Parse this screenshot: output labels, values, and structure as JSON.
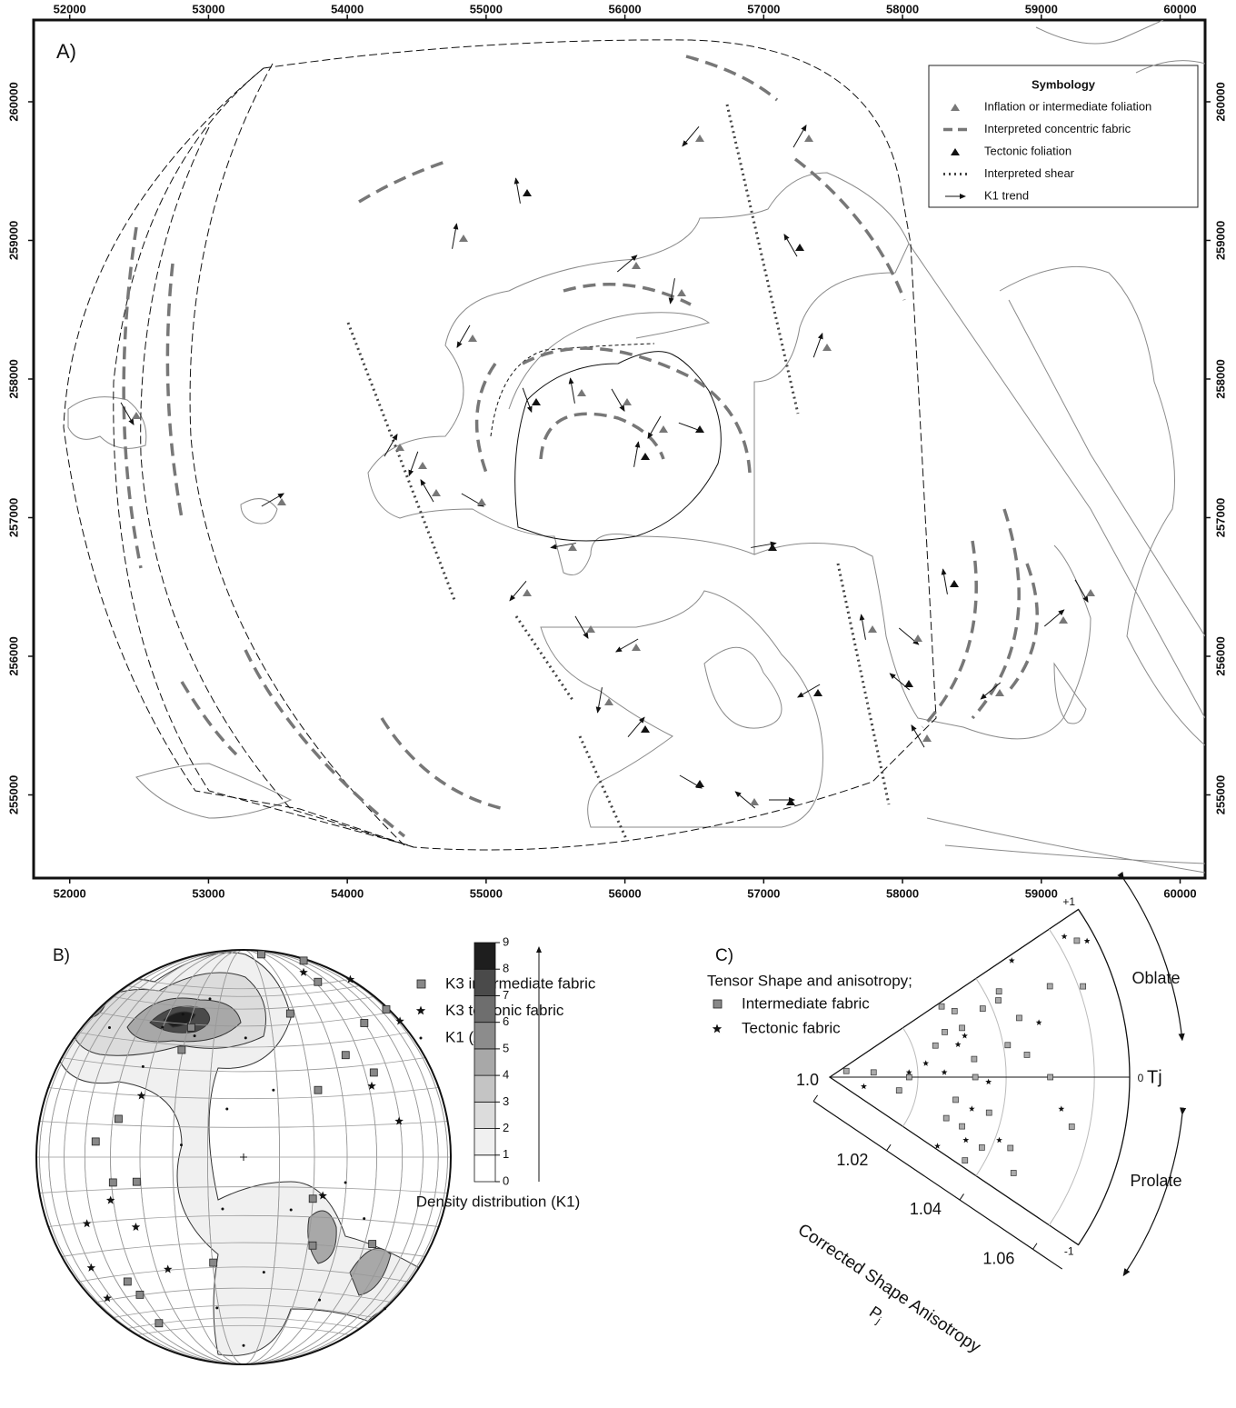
{
  "map": {
    "panel_label": "A)",
    "xlim": [
      51740,
      60180
    ],
    "ylim": [
      254400,
      260590
    ],
    "xticks": [
      52000,
      53000,
      54000,
      55000,
      56000,
      57000,
      58000,
      59000,
      60000
    ],
    "yticks": [
      255000,
      256000,
      257000,
      258000,
      259000,
      260000
    ],
    "legend": {
      "title": "Symbology",
      "entries": [
        "Inflation or intermediate foliation",
        "Interpreted concentric fabric",
        "Tectonic foliation",
        "Interpreted shear",
        "K1 trend"
      ]
    }
  },
  "stereonet": {
    "panel_label": "B)",
    "legend": [
      "K3 intermediate fabric",
      "K3 tectonic fabric",
      "K1 (All)"
    ],
    "k3_intermediate": {
      "trend": [
        5,
        17,
        23,
        42,
        44,
        45,
        57,
        48,
        18,
        330,
        338,
        287,
        276,
        259,
        257,
        196,
        207,
        217,
        142,
        124,
        121,
        223
      ],
      "plunge": [
        2,
        1,
        9,
        14,
        1,
        31,
        26,
        50,
        28,
        40,
        33,
        37,
        29,
        36,
        46,
        46,
        11,
        18,
        45,
        26,
        58,
        19
      ]
    },
    "k3_tectonic": {
      "trend": [
        18,
        31,
        49,
        61,
        77,
        252,
        237,
        234,
        214,
        247,
        116,
        301,
        224
      ],
      "plunge": [
        7,
        0,
        0,
        30,
        24,
        33,
        38,
        10,
        35,
        19,
        55,
        42,
        6
      ]
    },
    "k1": {
      "trend": [
        337,
        338,
        328,
        348,
        314,
        1,
        24,
        138,
        104,
        117,
        137,
        190,
        170,
        202,
        281,
        341,
        152,
        180,
        312
      ],
      "plunge": [
        26,
        37,
        27,
        23,
        11,
        42,
        61,
        62,
        48,
        35,
        0,
        27,
        43,
        68,
        65,
        70,
        23,
        10,
        35
      ]
    },
    "colorbar": {
      "label": "Density distribution (K1)",
      "ticks": [
        0,
        1,
        2,
        3,
        4,
        5,
        6,
        7,
        8,
        9
      ],
      "colors": [
        "#ffffff",
        "#f0f0f0",
        "#dcdcdc",
        "#c4c4c4",
        "#a8a8a8",
        "#8c8c8c",
        "#6e6e6e",
        "#4a4a4a",
        "#1e1e1e"
      ]
    }
  },
  "tensor": {
    "panel_label": "C)",
    "title": "Tensor Shape and anisotropy;",
    "legend": [
      "Intermediate fabric",
      "Tectonic fabric"
    ],
    "tj_lim": [
      -1,
      1
    ],
    "tj_ticks": [
      {
        "value": 1,
        "label": "+1"
      },
      0,
      -1
    ],
    "tj_label": "Tj",
    "pj_lim": [
      1.0,
      1.068
    ],
    "pj_ticks": [
      {
        "value": 1.0,
        "label": "1.0"
      },
      1.02,
      1.04,
      1.06
    ],
    "pj_label": "Corrected Shape Anisotropy",
    "pj_symbol": "P",
    "pj_subscript": "j",
    "oblate": "Oblate",
    "prolate": "Prolate",
    "intermediate": {
      "pj": [
        1.064,
        1.061,
        1.054,
        1.043,
        1.038,
        1.032,
        1.032,
        1.028,
        1.045,
        1.041,
        1.045,
        1.033,
        1.025,
        1.018,
        1.01,
        1.004,
        1.016,
        1.029,
        1.032,
        1.037,
        1.038,
        1.044,
        1.05,
        1.056,
        1.047,
        1.028,
        1.036,
        1.033,
        1.042,
        1.03
      ],
      "tj": [
        0.85,
        0.58,
        0.66,
        0.79,
        0.71,
        0.82,
        0.6,
        0.63,
        0.51,
        0.3,
        0.19,
        0.21,
        0.49,
        0,
        0.18,
        0.6,
        -0.32,
        -0.3,
        -0.6,
        -0.37,
        -0.73,
        -0.63,
        0,
        -0.34,
        -0.81,
        -0.57,
        -0.93,
        0,
        0.72,
        0.95
      ]
    },
    "tectonic": {
      "pj": [
        1.062,
        1.066,
        1.049,
        1.049,
        1.03,
        1.026,
        1.022,
        1.008,
        1.033,
        1.029,
        1.034,
        1.041,
        1.053,
        1.036,
        1.032,
        1.018
      ],
      "tj": [
        0.91,
        0.82,
        0.43,
        0.96,
        0.42,
        0.07,
        0.24,
        -0.45,
        -0.37,
        -0.96,
        -0.73,
        -0.6,
        -0.23,
        -0.05,
        0.5,
        0.1
      ]
    }
  }
}
